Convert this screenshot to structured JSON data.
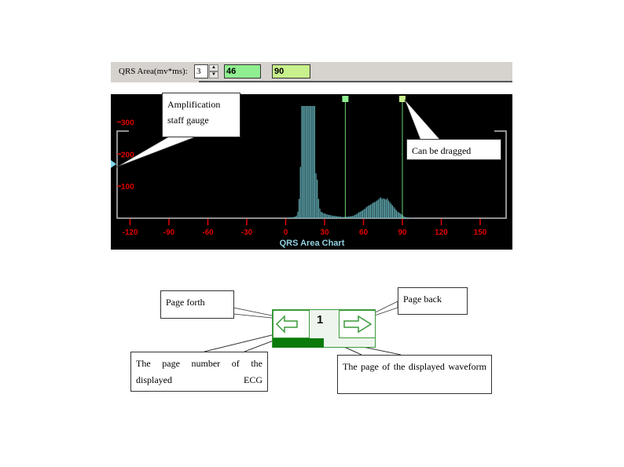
{
  "toolbar": {
    "label": "QRS Area(mv*ms):",
    "spin_value": "3",
    "lower_value": "46",
    "upper_value": "90",
    "lower_color": "#90ee90",
    "upper_color": "#c8f08c"
  },
  "chart_data": {
    "type": "bar",
    "title": "QRS Area Chart",
    "x_ticks": [
      -120,
      -90,
      -60,
      -30,
      0,
      30,
      60,
      90,
      120,
      150
    ],
    "y_ticks": [
      100,
      200,
      300
    ],
    "xlim": [
      -130,
      170
    ],
    "ylim": [
      0,
      350
    ],
    "bin_start": 0,
    "bin_width": 1,
    "values": [
      0,
      1,
      2,
      2,
      3,
      3,
      4,
      5,
      8,
      20,
      60,
      160,
      350,
      350,
      350,
      350,
      350,
      350,
      350,
      350,
      350,
      350,
      350,
      140,
      120,
      60,
      30,
      20,
      18,
      15,
      15,
      12,
      12,
      10,
      10,
      8,
      8,
      7,
      7,
      6,
      6,
      5,
      5,
      4,
      4,
      4,
      4,
      5,
      5,
      6,
      6,
      7,
      8,
      10,
      12,
      15,
      18,
      20,
      22,
      25,
      28,
      30,
      35,
      38,
      40,
      42,
      45,
      48,
      50,
      52,
      55,
      58,
      62,
      65,
      60,
      62,
      60,
      58,
      62,
      55,
      50,
      45,
      40,
      35,
      30,
      25,
      20,
      18,
      15,
      12,
      8,
      5,
      4,
      3,
      2,
      2,
      1,
      1,
      1,
      0,
      0
    ],
    "markers": [
      46,
      90
    ],
    "colors": {
      "bars": "#5fa8b0",
      "ticks": "#e00000",
      "title": "#8fd0e0",
      "marker": "#6fcf6f",
      "axis": "#c0c0c0"
    }
  },
  "callouts": {
    "amplification": "Amplification staff gauge",
    "dragged": "Can be dragged",
    "page_forth": "Page forth",
    "page_back": "Page back",
    "page_number": "The page number of the displayed ECG",
    "page_waveform": "The page of the displayed waveform"
  },
  "navigator": {
    "page_number": "1",
    "progress_percent": 50,
    "color": "#0a7a0a"
  }
}
